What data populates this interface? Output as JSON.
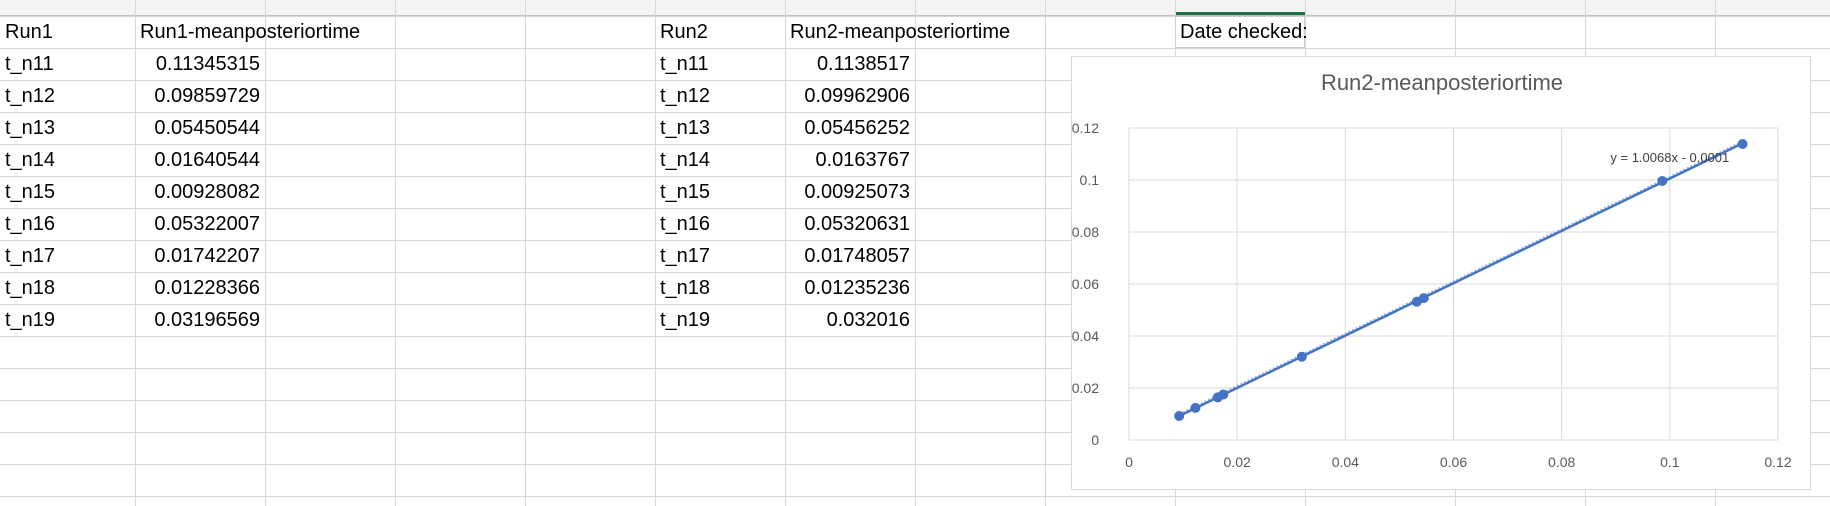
{
  "sheet": {
    "header_cells": [
      {
        "col": "A",
        "text": "Run1"
      },
      {
        "col": "B",
        "text": "Run1-meanposteriortime"
      },
      {
        "col": "F",
        "text": "Run2"
      },
      {
        "col": "G",
        "text": "Run2-meanposteriortime"
      },
      {
        "col": "J",
        "text": "Date checked:"
      }
    ],
    "run1_rows": [
      {
        "label": "t_n11",
        "value": "0.11345315"
      },
      {
        "label": "t_n12",
        "value": "0.09859729"
      },
      {
        "label": "t_n13",
        "value": "0.05450544"
      },
      {
        "label": "t_n14",
        "value": "0.01640544"
      },
      {
        "label": "t_n15",
        "value": "0.00928082"
      },
      {
        "label": "t_n16",
        "value": "0.05322007"
      },
      {
        "label": "t_n17",
        "value": "0.01742207"
      },
      {
        "label": "t_n18",
        "value": "0.01228366"
      },
      {
        "label": "t_n19",
        "value": "0.03196569"
      }
    ],
    "run2_rows": [
      {
        "label": "t_n11",
        "value": "0.1138517"
      },
      {
        "label": "t_n12",
        "value": "0.09962906"
      },
      {
        "label": "t_n13",
        "value": "0.05456252"
      },
      {
        "label": "t_n14",
        "value": "0.0163767"
      },
      {
        "label": "t_n15",
        "value": "0.00925073"
      },
      {
        "label": "t_n16",
        "value": "0.05320631"
      },
      {
        "label": "t_n17",
        "value": "0.01748057"
      },
      {
        "label": "t_n18",
        "value": "0.01235236"
      },
      {
        "label": "t_n19",
        "value": "0.032016"
      }
    ],
    "selected_header_accent": "#1e7145"
  },
  "chart_data": {
    "type": "scatter",
    "title": "Run2-meanposteriortime",
    "xlabel": "",
    "ylabel": "",
    "xlim": [
      0,
      0.12
    ],
    "ylim": [
      0,
      0.12
    ],
    "x_ticks": [
      "0",
      "0.02",
      "0.04",
      "0.06",
      "0.08",
      "0.1",
      "0.12"
    ],
    "y_ticks": [
      "0",
      "0.02",
      "0.04",
      "0.06",
      "0.08",
      "0.1",
      "0.12"
    ],
    "grid": true,
    "marker_color": "#4472c4",
    "points": [
      {
        "x": 0.11345315,
        "y": 0.1138517
      },
      {
        "x": 0.09859729,
        "y": 0.09962906
      },
      {
        "x": 0.05450544,
        "y": 0.05456252
      },
      {
        "x": 0.01640544,
        "y": 0.0163767
      },
      {
        "x": 0.00928082,
        "y": 0.00925073
      },
      {
        "x": 0.05322007,
        "y": 0.05320631
      },
      {
        "x": 0.01742207,
        "y": 0.01748057
      },
      {
        "x": 0.01228366,
        "y": 0.01235236
      },
      {
        "x": 0.03196569,
        "y": 0.032016
      }
    ],
    "trendline": {
      "type": "linear",
      "slope": 1.0068,
      "intercept": -0.0001,
      "equation": "y = 1.0068x - 0.0001"
    }
  }
}
